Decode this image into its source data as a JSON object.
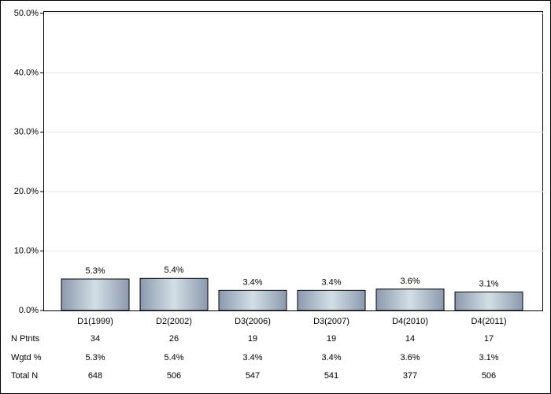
{
  "chart_data": {
    "type": "bar",
    "categories": [
      "D1(1999)",
      "D2(2002)",
      "D3(2006)",
      "D3(2007)",
      "D4(2010)",
      "D4(2011)"
    ],
    "values": [
      5.3,
      5.4,
      3.4,
      3.4,
      3.6,
      3.1
    ],
    "value_labels": [
      "5.3%",
      "5.4%",
      "3.4%",
      "3.4%",
      "3.6%",
      "3.1%"
    ],
    "ylim": [
      0,
      50
    ],
    "yticks": [
      {
        "value": 0,
        "label": "0.0%"
      },
      {
        "value": 10,
        "label": "10.0%"
      },
      {
        "value": 20,
        "label": "20.0%"
      },
      {
        "value": 30,
        "label": "30.0%"
      },
      {
        "value": 40,
        "label": "40.0%"
      },
      {
        "value": 50,
        "label": "50.0%"
      }
    ],
    "grid": true,
    "table": {
      "rows": [
        {
          "label": "N Ptnts",
          "cells": [
            34,
            26,
            19,
            19,
            14,
            17
          ]
        },
        {
          "label": "Wgtd %",
          "cells": [
            "5.3%",
            "5.4%",
            "3.4%",
            "3.4%",
            "3.6%",
            "3.1%"
          ]
        },
        {
          "label": "Total N",
          "cells": [
            648,
            506,
            547,
            541,
            377,
            506
          ]
        }
      ]
    }
  }
}
